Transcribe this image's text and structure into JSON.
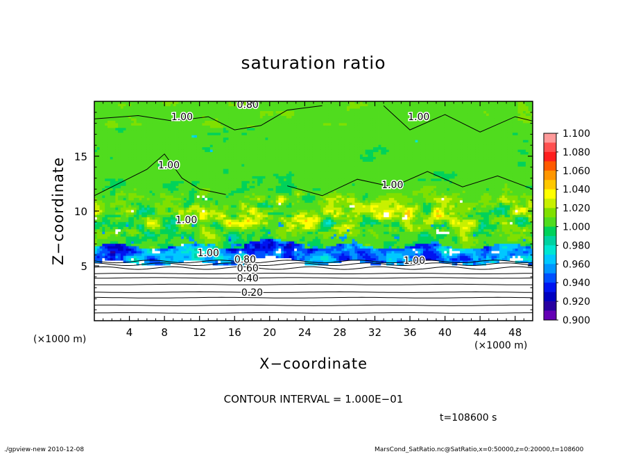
{
  "chart_data": {
    "type": "heatmap",
    "title": "saturation ratio",
    "xlabel": "X−coordinate",
    "ylabel": "Z−coordinate",
    "x_unit_label": "(×1000 m)",
    "z_unit_label": "(×1000 m)",
    "xlim": [
      0,
      50
    ],
    "ylim": [
      0,
      20
    ],
    "x_ticks": [
      "4",
      "8",
      "12",
      "16",
      "20",
      "24",
      "28",
      "32",
      "36",
      "40",
      "44",
      "48"
    ],
    "x_tick_values": [
      4,
      8,
      12,
      16,
      20,
      24,
      28,
      32,
      36,
      40,
      44,
      48
    ],
    "y_ticks": [
      "5",
      "10",
      "15"
    ],
    "y_tick_values": [
      5,
      10,
      15
    ],
    "colorbar": {
      "labels": [
        "1.100",
        "1.080",
        "1.060",
        "1.040",
        "1.020",
        "1.000",
        "0.980",
        "0.960",
        "0.940",
        "0.920",
        "0.900"
      ],
      "bands": [
        {
          "range": [
            1.09,
            1.1
          ],
          "color": "#ff9a9a"
        },
        {
          "range": [
            1.08,
            1.09
          ],
          "color": "#ff5050"
        },
        {
          "range": [
            1.07,
            1.08
          ],
          "color": "#ff1e1e"
        },
        {
          "range": [
            1.06,
            1.07
          ],
          "color": "#ff5a00"
        },
        {
          "range": [
            1.05,
            1.06
          ],
          "color": "#ff9600"
        },
        {
          "range": [
            1.04,
            1.05
          ],
          "color": "#ffc800"
        },
        {
          "range": [
            1.03,
            1.04
          ],
          "color": "#ffff00"
        },
        {
          "range": [
            1.02,
            1.03
          ],
          "color": "#c8f000"
        },
        {
          "range": [
            1.01,
            1.02
          ],
          "color": "#80e000"
        },
        {
          "range": [
            1.0,
            1.01
          ],
          "color": "#50dc1e"
        },
        {
          "range": [
            0.99,
            1.0
          ],
          "color": "#00d25a"
        },
        {
          "range": [
            0.98,
            0.99
          ],
          "color": "#00d2a0"
        },
        {
          "range": [
            0.97,
            0.98
          ],
          "color": "#00e6d2"
        },
        {
          "range": [
            0.96,
            0.97
          ],
          "color": "#00c8ff"
        },
        {
          "range": [
            0.95,
            0.96
          ],
          "color": "#0096ff"
        },
        {
          "range": [
            0.94,
            0.95
          ],
          "color": "#0050ff"
        },
        {
          "range": [
            0.93,
            0.94
          ],
          "color": "#0014f0"
        },
        {
          "range": [
            0.92,
            0.93
          ],
          "color": "#0000c0"
        },
        {
          "range": [
            0.91,
            0.92
          ],
          "color": "#2800a0"
        },
        {
          "range": [
            0.9,
            0.91
          ],
          "color": "#6400b4"
        }
      ]
    },
    "contour_labels": [
      {
        "text": "0.20",
        "x": 18,
        "z": 2.6
      },
      {
        "text": "0.40",
        "x": 17.5,
        "z": 3.9
      },
      {
        "text": "0.60",
        "x": 17.5,
        "z": 4.8
      },
      {
        "text": "0.80",
        "x": 17.2,
        "z": 5.6
      },
      {
        "text": "1.00",
        "x": 13,
        "z": 6.2
      },
      {
        "text": "1.00",
        "x": 36.5,
        "z": 5.5
      },
      {
        "text": "1.00",
        "x": 10.5,
        "z": 9.2
      },
      {
        "text": "1.00",
        "x": 8.5,
        "z": 14.2
      },
      {
        "text": "1.00",
        "x": 10,
        "z": 18.6
      },
      {
        "text": "1.00",
        "x": 34,
        "z": 12.4
      },
      {
        "text": "1.00",
        "x": 37,
        "z": 18.6
      },
      {
        "text": "0.80",
        "x": 17.5,
        "z": 19.7
      }
    ],
    "background_contours_z": [
      0.7,
      1.4,
      2.1,
      2.6,
      3.3,
      3.9,
      4.3,
      4.8,
      5.15,
      5.4
    ]
  },
  "contour_interval_label": "CONTOUR INTERVAL = 1.000E−01",
  "time_label": "t=108600 s",
  "footer": {
    "left": "./gpview-new   2010-12-08",
    "right": "MarsCond_SatRatio.nc@SatRatio,x=0:50000,z=0:20000,t=108600"
  },
  "colors": {
    "ground_white": "#ffffff",
    "background": "#ffffff",
    "axis": "#000000"
  }
}
